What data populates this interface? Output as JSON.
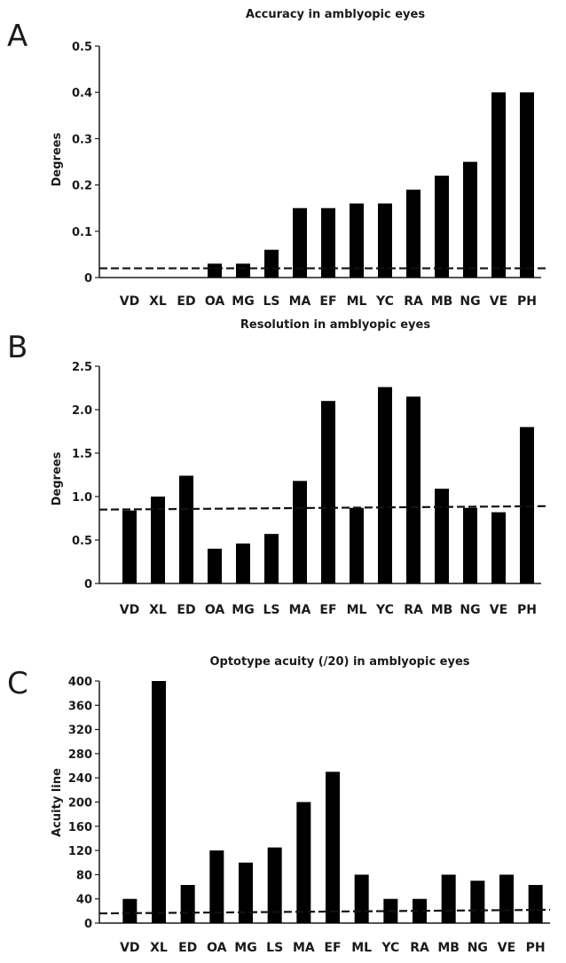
{
  "chart_data": [
    {
      "type": "bar",
      "panel": "A",
      "title": "Accuracy in amblyopic eyes",
      "ylabel": "Degrees",
      "xlabel": "",
      "categories": [
        "VD",
        "XL",
        "ED",
        "OA",
        "MG",
        "LS",
        "MA",
        "EF",
        "ML",
        "YC",
        "RA",
        "MB",
        "NG",
        "VE",
        "PH"
      ],
      "values": [
        0,
        0,
        0,
        0.03,
        0.03,
        0.06,
        0.15,
        0.15,
        0.16,
        0.16,
        0.19,
        0.22,
        0.25,
        0.4,
        0.4
      ],
      "ylim": [
        0,
        0.5
      ],
      "yticks": [
        "0",
        "0.1",
        "0.2",
        "0.3",
        "0.4",
        "0.5"
      ],
      "reference_line": [
        0.02,
        0.02
      ],
      "grid": false
    },
    {
      "type": "bar",
      "panel": "B",
      "title": "Resolution in amblyopic eyes",
      "ylabel": "Degrees",
      "xlabel": "",
      "categories": [
        "VD",
        "XL",
        "ED",
        "OA",
        "MG",
        "LS",
        "MA",
        "EF",
        "ML",
        "YC",
        "RA",
        "MB",
        "NG",
        "VE",
        "PH"
      ],
      "values": [
        0.84,
        1.0,
        1.24,
        0.4,
        0.46,
        0.57,
        1.18,
        2.1,
        0.87,
        2.26,
        2.15,
        1.09,
        0.87,
        0.82,
        1.8
      ],
      "ylim": [
        0,
        2.5
      ],
      "yticks": [
        "0",
        "0.5",
        "1.0",
        "1.5",
        "2.0",
        "2.5"
      ],
      "reference_line": [
        0.85,
        0.89
      ],
      "grid": false
    },
    {
      "type": "bar",
      "panel": "C",
      "title": "Optotype acuity (/20) in amblyopic eyes",
      "ylabel": "Acuity line",
      "xlabel": "",
      "categories": [
        "VD",
        "XL",
        "ED",
        "OA",
        "MG",
        "LS",
        "MA",
        "EF",
        "ML",
        "YC",
        "RA",
        "MB",
        "NG",
        "VE",
        "PH"
      ],
      "values": [
        40,
        400,
        63,
        120,
        100,
        125,
        200,
        250,
        80,
        40,
        40,
        80,
        70,
        80,
        63
      ],
      "ylim": [
        0,
        400
      ],
      "yticks": [
        "0",
        "40",
        "80",
        "120",
        "160",
        "200",
        "240",
        "280",
        "320",
        "360",
        "400"
      ],
      "reference_line": [
        16,
        22
      ],
      "grid": false
    }
  ]
}
